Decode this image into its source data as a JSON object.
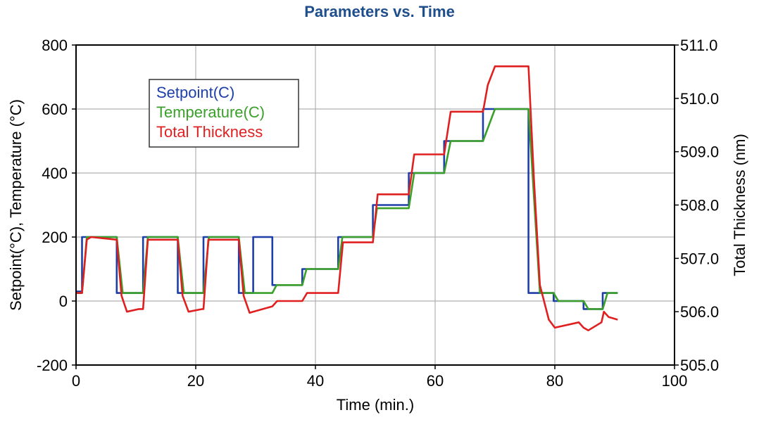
{
  "chart_data": {
    "type": "line",
    "title": "Parameters vs. Time",
    "title_color": "#1f4e8c",
    "xlabel": "Time (min.)",
    "ylabel_left": "Setpoint(°C), Temperature (°C)",
    "ylabel_right": "Total Thickness (nm)",
    "xlim": [
      0,
      100
    ],
    "ylim_left": [
      -200,
      800
    ],
    "ylim_right": [
      505.0,
      511.0
    ],
    "x_ticks": [
      "0",
      "20",
      "40",
      "60",
      "80",
      "100"
    ],
    "y_left_ticks": [
      "800",
      "600",
      "400",
      "200",
      "0",
      "-200"
    ],
    "y_right_ticks": [
      "511.0",
      "510.0",
      "509.0",
      "508.0",
      "507.0",
      "506.0",
      "505.0"
    ],
    "grid": true,
    "legend_position": "top-left",
    "series": [
      {
        "name": "Setpoint(C)",
        "axis": "left",
        "color": "#1f3fa8",
        "x": [
          0,
          1,
          1,
          6.8,
          6.8,
          11.2,
          11.2,
          17,
          17,
          21.3,
          21.3,
          27.2,
          27.2,
          29.6,
          29.6,
          32.8,
          32.8,
          37.8,
          37.8,
          43.8,
          43.8,
          49.6,
          49.6,
          55.6,
          55.6,
          61.5,
          61.5,
          68,
          68,
          75.6,
          75.6,
          79.8,
          79.8,
          84.8,
          84.8,
          88,
          88,
          90.5
        ],
        "y": [
          30,
          30,
          200,
          200,
          25,
          25,
          200,
          200,
          25,
          25,
          200,
          200,
          25,
          25,
          200,
          200,
          50,
          50,
          100,
          100,
          200,
          200,
          300,
          300,
          400,
          400,
          500,
          500,
          600,
          600,
          25,
          25,
          0,
          0,
          -25,
          -25,
          25,
          25
        ]
      },
      {
        "name": "Temperature(C)",
        "axis": "left",
        "color": "#3aa02a",
        "x": [
          0,
          1,
          1.8,
          6.8,
          7.8,
          11.2,
          12,
          17,
          18,
          21.3,
          22.2,
          27.2,
          28.2,
          32.8,
          33.5,
          37.8,
          38.5,
          43.8,
          44.5,
          49.6,
          50.3,
          55.6,
          56.5,
          61.5,
          62.6,
          68,
          70,
          75.6,
          77.5,
          79.8,
          80.6,
          84.8,
          85.6,
          88,
          88.8,
          90.5
        ],
        "y": [
          25,
          25,
          200,
          200,
          25,
          25,
          200,
          200,
          25,
          25,
          200,
          200,
          25,
          25,
          50,
          50,
          100,
          100,
          200,
          200,
          290,
          290,
          400,
          400,
          500,
          500,
          600,
          600,
          25,
          25,
          0,
          0,
          -25,
          -25,
          25,
          25
        ]
      },
      {
        "name": "Total Thickness",
        "axis": "right",
        "color": "#e02020",
        "x": [
          0,
          1,
          1.8,
          2.5,
          6.8,
          7.6,
          8.5,
          10.5,
          11.2,
          12,
          17,
          17.8,
          18.8,
          21.1,
          21.3,
          22.1,
          27.2,
          28,
          29,
          29.6,
          32.8,
          33.6,
          37.8,
          38.6,
          43.8,
          44.6,
          49.6,
          50.4,
          55.6,
          56.5,
          61.5,
          62.6,
          68,
          68.8,
          70,
          71,
          75.6,
          76.5,
          77.5,
          79,
          80,
          84,
          84.8,
          85.6,
          87.8,
          88.2,
          89,
          90.5
        ],
        "y": [
          506.35,
          506.35,
          507.35,
          507.4,
          507.35,
          506.3,
          506.0,
          506.05,
          506.05,
          507.35,
          507.35,
          506.3,
          506.0,
          506.05,
          506.05,
          507.35,
          507.35,
          506.3,
          505.98,
          506.0,
          506.1,
          506.2,
          506.2,
          506.35,
          506.35,
          507.3,
          507.3,
          508.2,
          508.2,
          508.95,
          508.95,
          509.75,
          509.75,
          510.25,
          510.6,
          510.6,
          510.6,
          508.5,
          506.5,
          505.85,
          505.7,
          505.8,
          505.7,
          505.65,
          505.8,
          506.0,
          505.9,
          505.85
        ]
      }
    ]
  }
}
